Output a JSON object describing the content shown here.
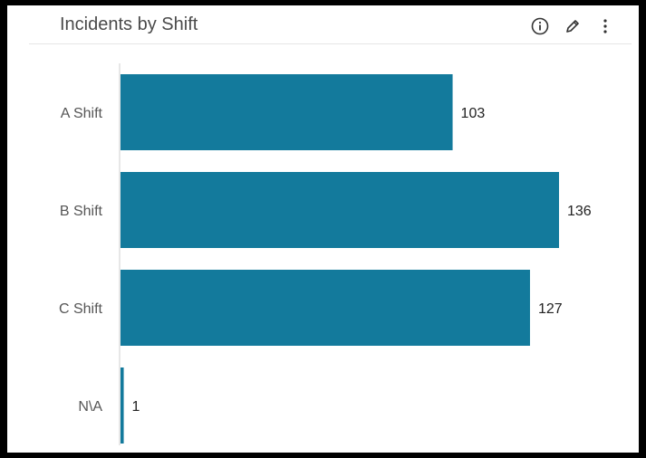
{
  "card": {
    "title": "Incidents by Shift",
    "icons": [
      "info-icon",
      "edit-pencil-icon",
      "more-vertical-icon"
    ]
  },
  "chart_data": {
    "type": "bar",
    "orientation": "horizontal",
    "categories": [
      "A Shift",
      "B Shift",
      "C Shift",
      "N\\A"
    ],
    "values": [
      103,
      136,
      127,
      1
    ],
    "bar_color": "#137a9c",
    "xlim": [
      0,
      140
    ],
    "grid": false
  }
}
